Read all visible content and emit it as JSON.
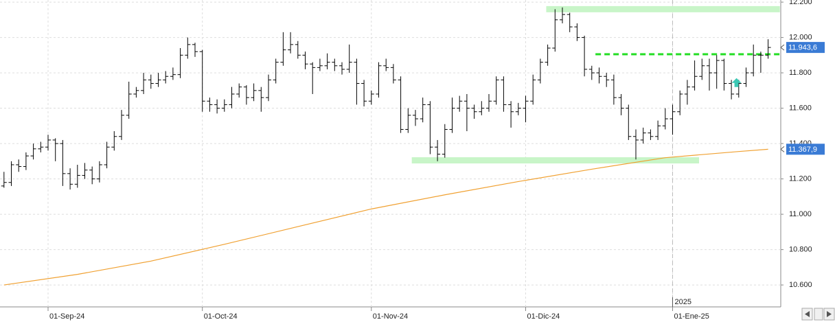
{
  "chart_data": {
    "type": "ohlc",
    "color": "#000000",
    "ylim": [
      10476,
      12212
    ],
    "yticks": [
      {
        "value": 10600,
        "label": "10.600"
      },
      {
        "value": 10800,
        "label": "10.800"
      },
      {
        "value": 11000,
        "label": "11.000"
      },
      {
        "value": 11200,
        "label": "11.200"
      },
      {
        "value": 11400,
        "label": "11.400"
      },
      {
        "value": 11600,
        "label": "11.600"
      },
      {
        "value": 11800,
        "label": "11.800"
      },
      {
        "value": 12000,
        "label": "12.000"
      },
      {
        "value": 12200,
        "label": "12.200"
      }
    ],
    "grid": true,
    "categories": [
      null,
      null,
      null,
      null,
      null,
      null,
      "01-Sep-24",
      null,
      null,
      null,
      null,
      null,
      null,
      null,
      null,
      null,
      null,
      null,
      null,
      null,
      null,
      null,
      null,
      null,
      null,
      null,
      null,
      "01-Oct-24",
      null,
      null,
      null,
      null,
      null,
      null,
      null,
      null,
      null,
      null,
      null,
      null,
      null,
      null,
      null,
      null,
      null,
      null,
      null,
      null,
      null,
      null,
      "01-Nov-24",
      null,
      null,
      null,
      null,
      null,
      null,
      null,
      null,
      null,
      null,
      null,
      null,
      null,
      null,
      null,
      null,
      null,
      null,
      null,
      null,
      "01-Dic-24",
      null,
      null,
      null,
      null,
      null,
      null,
      null,
      null,
      null,
      null,
      null,
      null,
      null,
      null,
      null,
      null,
      null,
      null,
      null,
      "01-Ene-25",
      null,
      null,
      null,
      null,
      null,
      null,
      null,
      null,
      null,
      null,
      null,
      null,
      null
    ],
    "open": [
      11160,
      11180,
      11280,
      11270,
      11330,
      11370,
      11380,
      11420,
      11400,
      11230,
      11170,
      11220,
      11250,
      11200,
      11280,
      11380,
      11440,
      11560,
      11680,
      11700,
      11760,
      11740,
      11760,
      11780,
      11790,
      11900,
      11960,
      11920,
      11640,
      11620,
      11600,
      11620,
      11680,
      11720,
      11660,
      11700,
      11660,
      11760,
      11860,
      11930,
      11960,
      11900,
      11850,
      11830,
      11840,
      11860,
      11840,
      11820,
      11860,
      11740,
      11640,
      11680,
      11840,
      11830,
      11760,
      11480,
      11560,
      11540,
      11620,
      11380,
      11340,
      11480,
      11600,
      11640,
      11600,
      11580,
      11600,
      11640,
      11760,
      11620,
      11580,
      11600,
      11640,
      11760,
      11860,
      11940,
      12100,
      12130,
      12060,
      12000,
      11820,
      11800,
      11780,
      11760,
      11660,
      11600,
      11440,
      11420,
      11460,
      11440,
      11500,
      11540,
      11580,
      11680,
      11720,
      11780,
      11840,
      11800,
      11870,
      11740,
      11680,
      11740,
      11800,
      11900,
      11900
    ],
    "high": [
      11240,
      11300,
      11310,
      11350,
      11400,
      11410,
      11450,
      11430,
      11420,
      11260,
      11280,
      11290,
      11270,
      11300,
      11410,
      11470,
      11590,
      11750,
      11720,
      11800,
      11790,
      11800,
      11810,
      11830,
      11940,
      12000,
      11970,
      11930,
      11660,
      11650,
      11650,
      11720,
      11740,
      11730,
      11740,
      11720,
      11790,
      11880,
      12030,
      12030,
      11980,
      11920,
      11860,
      11880,
      11910,
      11880,
      11860,
      11960,
      11880,
      11760,
      11700,
      11860,
      11880,
      11850,
      11780,
      11600,
      11590,
      11660,
      11640,
      11420,
      11510,
      11660,
      11670,
      11680,
      11620,
      11640,
      11680,
      11780,
      11780,
      11640,
      11630,
      11670,
      11790,
      11880,
      11960,
      12160,
      12170,
      12140,
      12080,
      12010,
      11840,
      11830,
      11800,
      11790,
      11680,
      11620,
      11480,
      11490,
      11480,
      11530,
      11600,
      11620,
      11700,
      11760,
      11870,
      11880,
      11880,
      11900,
      11880,
      11760,
      11760,
      11830,
      11960,
      11920,
      11990
    ],
    "low": [
      11150,
      11160,
      11240,
      11250,
      11310,
      11350,
      11360,
      11300,
      11160,
      11140,
      11150,
      11200,
      11170,
      11180,
      11260,
      11360,
      11420,
      11540,
      11660,
      11680,
      11710,
      11720,
      11740,
      11760,
      11770,
      11880,
      11890,
      11580,
      11580,
      11570,
      11580,
      11600,
      11660,
      11620,
      11640,
      11580,
      11640,
      11740,
      11840,
      11910,
      11880,
      11820,
      11680,
      11810,
      11820,
      11810,
      11790,
      11800,
      11620,
      11610,
      11620,
      11660,
      11810,
      11740,
      11460,
      11460,
      11500,
      11520,
      11340,
      11300,
      11320,
      11460,
      11580,
      11470,
      11540,
      11560,
      11580,
      11620,
      11580,
      11490,
      11560,
      11520,
      11620,
      11740,
      11840,
      11920,
      12080,
      12030,
      11980,
      11780,
      11760,
      11740,
      11720,
      11620,
      11560,
      11420,
      11310,
      11400,
      11420,
      11420,
      11480,
      11450,
      11560,
      11620,
      11700,
      11760,
      11700,
      11710,
      11700,
      11650,
      11660,
      11720,
      11780,
      11800,
      11880
    ],
    "close": [
      11180,
      11280,
      11270,
      11330,
      11370,
      11380,
      11420,
      11400,
      11230,
      11170,
      11220,
      11250,
      11200,
      11280,
      11380,
      11440,
      11560,
      11680,
      11700,
      11760,
      11740,
      11760,
      11780,
      11790,
      11900,
      11960,
      11920,
      11640,
      11620,
      11600,
      11620,
      11680,
      11720,
      11660,
      11700,
      11660,
      11760,
      11860,
      11930,
      11960,
      11900,
      11850,
      11830,
      11840,
      11860,
      11840,
      11820,
      11860,
      11740,
      11640,
      11680,
      11840,
      11830,
      11760,
      11480,
      11560,
      11540,
      11620,
      11380,
      11340,
      11480,
      11600,
      11640,
      11600,
      11580,
      11600,
      11640,
      11760,
      11620,
      11580,
      11600,
      11640,
      11760,
      11860,
      11940,
      12100,
      12130,
      12060,
      12000,
      11820,
      11800,
      11780,
      11760,
      11660,
      11600,
      11440,
      11420,
      11460,
      11440,
      11500,
      11540,
      11580,
      11680,
      11720,
      11780,
      11840,
      11800,
      11870,
      11740,
      11680,
      11740,
      11800,
      11900,
      11900,
      11943.6
    ],
    "moving_average": {
      "color": "#f0a030",
      "x": [
        0,
        10,
        20,
        30,
        40,
        50,
        60,
        70,
        80,
        90,
        100,
        104
      ],
      "values": [
        10600,
        10660,
        10735,
        10830,
        10930,
        11030,
        11110,
        11185,
        11255,
        11320,
        11355,
        11367.9
      ]
    },
    "price_labels": [
      {
        "value": 11943.6,
        "label": "11.943,6"
      },
      {
        "value": 11367.9,
        "label": "11.367,9"
      }
    ],
    "zones": [
      {
        "value": 12160,
        "from": 73.8,
        "to": 105.6,
        "color": "#c8f5c8"
      },
      {
        "value": 11305,
        "from": 55.5,
        "to": 94.6,
        "color": "#c8f5c8"
      }
    ],
    "levels": [
      {
        "value": 11905,
        "from": 80.5,
        "to": 105.6,
        "color": "#22dd22"
      }
    ],
    "arrow": {
      "x": 99.7,
      "value": 11770,
      "color": "#3cc8b4"
    },
    "year_separator": {
      "x": 91,
      "label": "2025"
    }
  }
}
